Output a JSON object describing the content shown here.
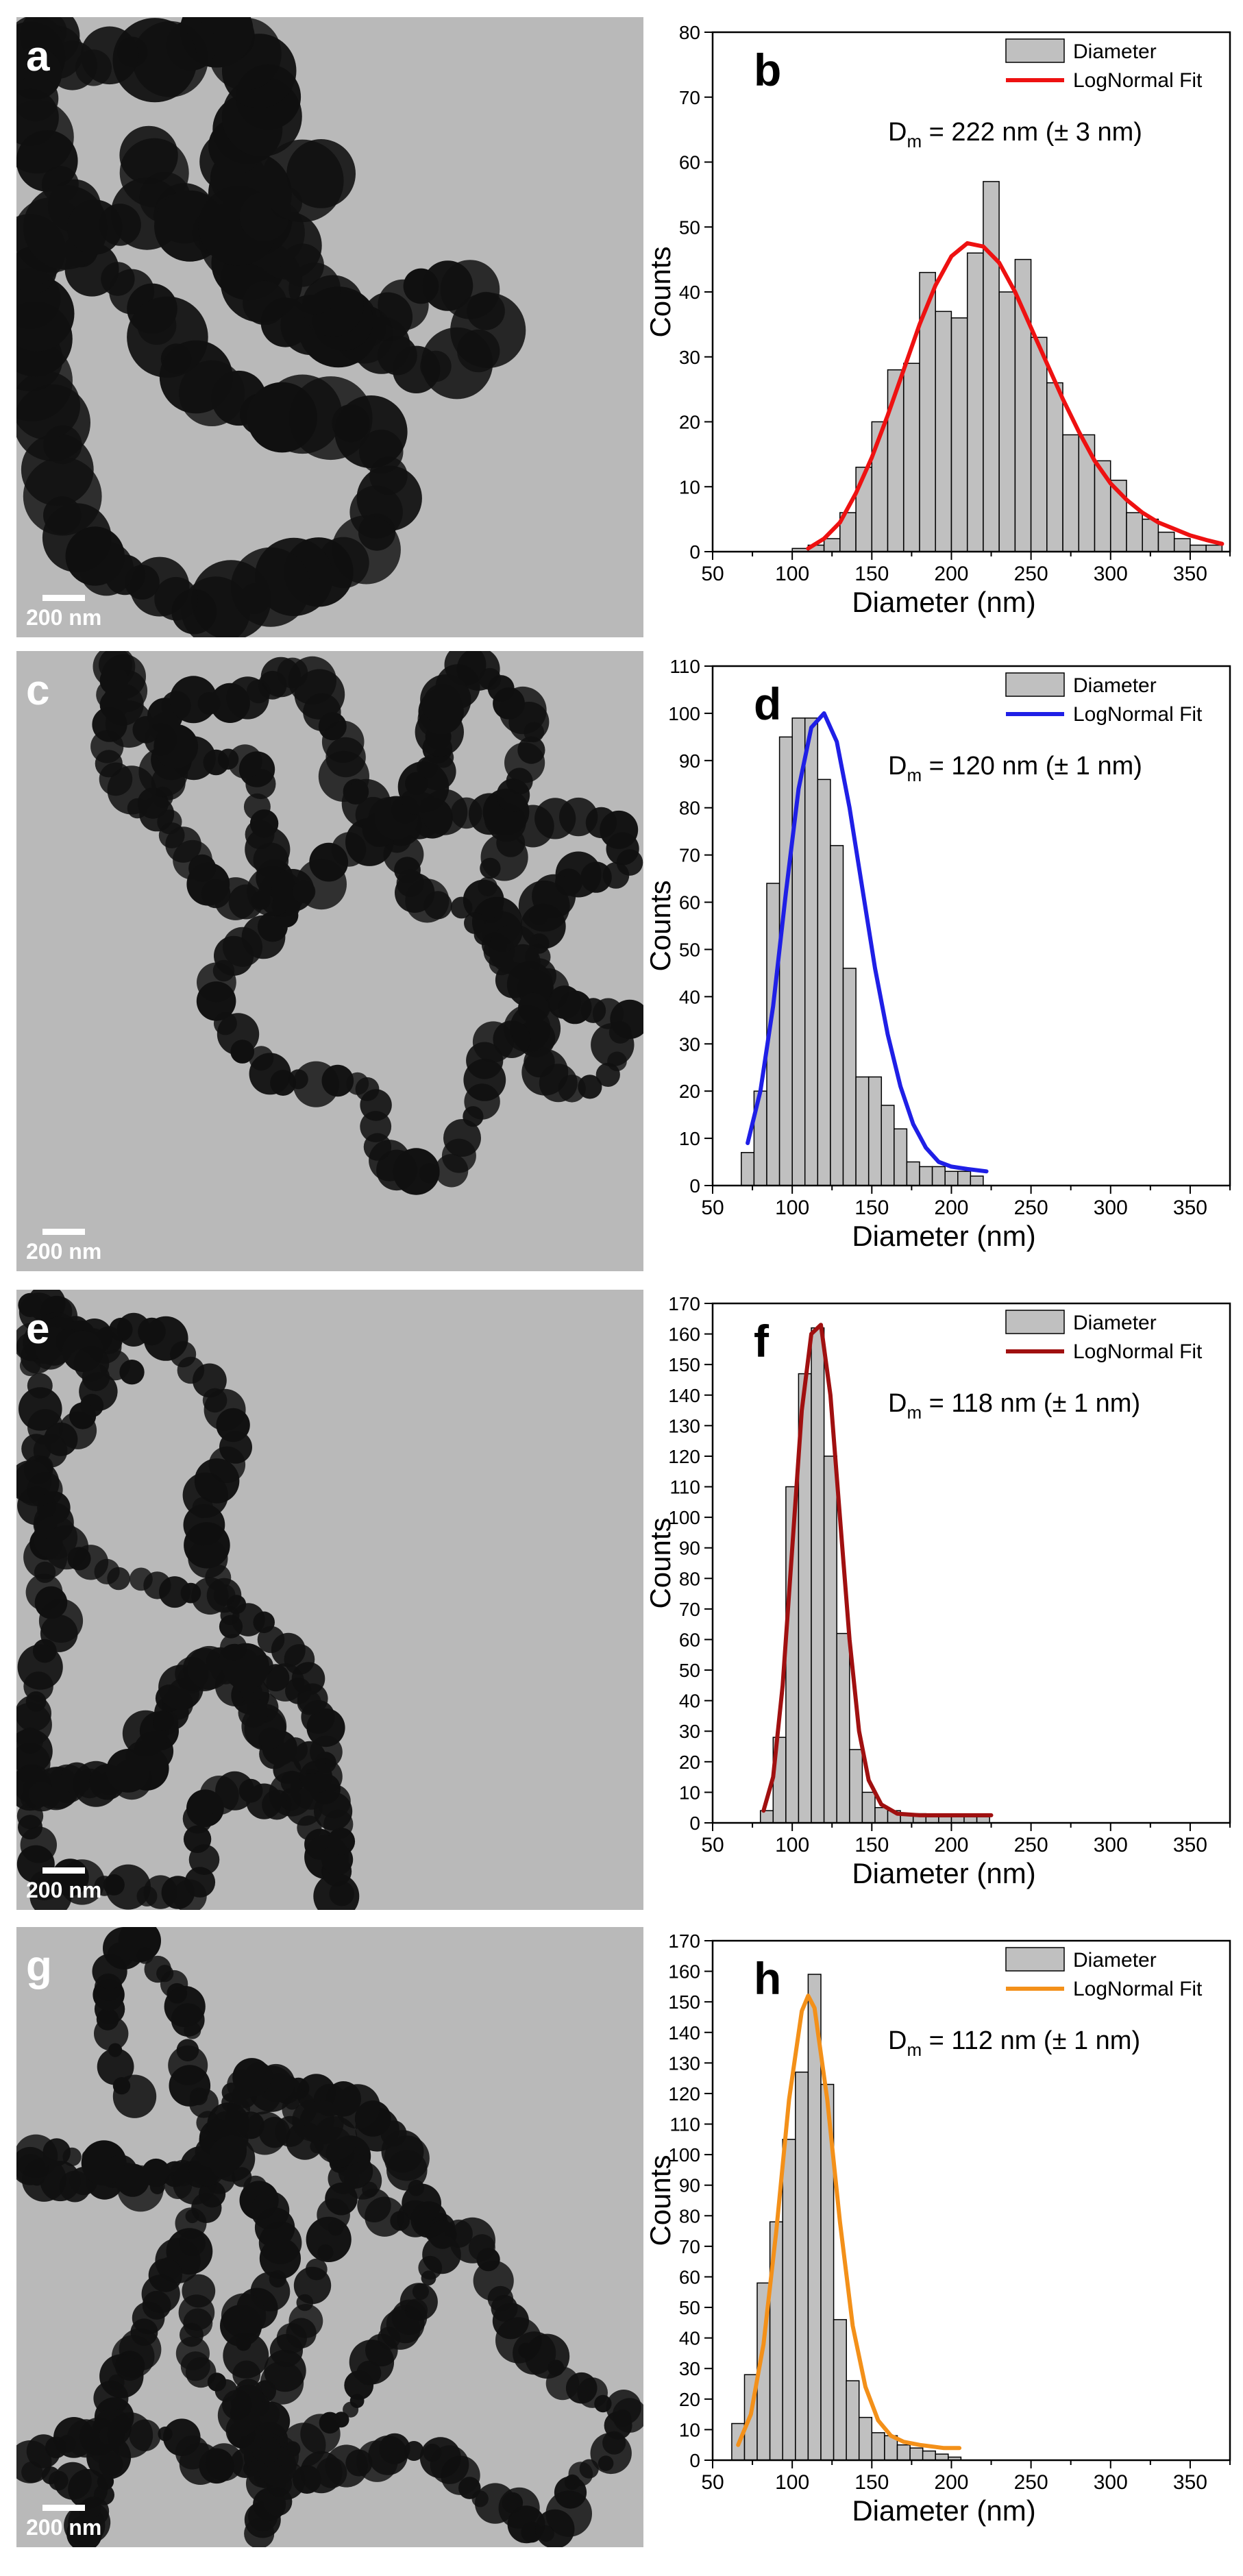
{
  "panels": [
    {
      "letter": "a",
      "scalebar_label": "200 nm",
      "accent": "#ffffff"
    },
    {
      "letter": "c",
      "scalebar_label": "200 nm",
      "accent": "#ffffff"
    },
    {
      "letter": "e",
      "scalebar_label": "200 nm",
      "accent": "#ffffff"
    },
    {
      "letter": "g",
      "scalebar_label": "200 nm",
      "accent": "#ffffff"
    }
  ],
  "chart_data": [
    {
      "type": "bar",
      "panel_letter": "b",
      "xlabel": "Diameter (nm)",
      "ylabel": "Counts",
      "xlim": [
        50,
        375
      ],
      "ylim": [
        0,
        80
      ],
      "xticks": [
        50,
        100,
        150,
        200,
        250,
        300,
        350
      ],
      "yticks": [
        0,
        10,
        20,
        30,
        40,
        50,
        60,
        70,
        80
      ],
      "bin_width": 10,
      "bins": [
        105,
        115,
        125,
        135,
        145,
        155,
        165,
        175,
        185,
        195,
        205,
        215,
        225,
        235,
        245,
        255,
        265,
        275,
        285,
        295,
        305,
        315,
        325,
        335,
        345,
        355,
        365
      ],
      "values": [
        0.5,
        1,
        2,
        6,
        13,
        20,
        28,
        29,
        43,
        37,
        36,
        46,
        57,
        40,
        45,
        33,
        26,
        18,
        18,
        14,
        11,
        6,
        5,
        3,
        2,
        1,
        1
      ],
      "series": [
        {
          "name": "Diameter",
          "color": "#c0c0c0",
          "kind": "bars"
        },
        {
          "name": "LogNormal Fit",
          "color": "#ee1111",
          "kind": "line",
          "x": [
            110,
            120,
            130,
            140,
            150,
            160,
            170,
            180,
            190,
            200,
            210,
            220,
            230,
            240,
            250,
            260,
            270,
            280,
            290,
            300,
            310,
            320,
            330,
            340,
            350,
            360,
            370
          ],
          "values": [
            0.5,
            2,
            4.5,
            9,
            14.5,
            21,
            28,
            35,
            41,
            45.5,
            47.5,
            47,
            44.5,
            40,
            34.5,
            29,
            23.5,
            18.5,
            14,
            10.5,
            8,
            6,
            4.5,
            3.5,
            2.5,
            1.8,
            1.2
          ]
        }
      ],
      "legend": {
        "position": "top-right",
        "items": [
          "Diameter",
          "LogNormal Fit"
        ]
      },
      "annotation": {
        "prefix": "D",
        "subscript": "m",
        "text": " = 222 nm (± 3 nm)"
      }
    },
    {
      "type": "bar",
      "panel_letter": "d",
      "xlabel": "Diameter (nm)",
      "ylabel": "Counts",
      "xlim": [
        50,
        375
      ],
      "ylim": [
        0,
        110
      ],
      "xticks": [
        50,
        100,
        150,
        200,
        250,
        300,
        350
      ],
      "yticks": [
        0,
        10,
        20,
        30,
        40,
        50,
        60,
        70,
        80,
        90,
        100,
        110
      ],
      "bin_width": 8,
      "bins": [
        72,
        80,
        88,
        96,
        104,
        112,
        120,
        128,
        136,
        144,
        152,
        160,
        168,
        176,
        184,
        192,
        200,
        208,
        216
      ],
      "values": [
        7,
        20,
        64,
        95,
        99,
        99,
        86,
        72,
        46,
        23,
        23,
        17,
        12,
        5,
        4,
        4,
        3,
        3,
        2
      ],
      "series": [
        {
          "name": "Diameter",
          "color": "#c0c0c0",
          "kind": "bars"
        },
        {
          "name": "LogNormal Fit",
          "color": "#1f1fe6",
          "kind": "line",
          "x": [
            72,
            80,
            88,
            96,
            104,
            112,
            120,
            128,
            136,
            144,
            152,
            160,
            168,
            176,
            184,
            192,
            200,
            210,
            222
          ],
          "values": [
            9,
            20,
            38,
            62,
            84,
            97,
            100,
            94,
            80,
            63,
            46,
            32,
            21,
            13,
            8,
            5,
            4,
            3.5,
            3
          ]
        }
      ],
      "legend": {
        "position": "top-right",
        "items": [
          "Diameter",
          "LogNormal Fit"
        ]
      },
      "annotation": {
        "prefix": "D",
        "subscript": "m",
        "text": " = 120 nm (± 1 nm)"
      }
    },
    {
      "type": "bar",
      "panel_letter": "f",
      "xlabel": "Diameter (nm)",
      "ylabel": "Counts",
      "xlim": [
        50,
        375
      ],
      "ylim": [
        0,
        170
      ],
      "xticks": [
        50,
        100,
        150,
        200,
        250,
        300,
        350
      ],
      "yticks": [
        0,
        10,
        20,
        30,
        40,
        50,
        60,
        70,
        80,
        90,
        100,
        110,
        120,
        130,
        140,
        150,
        160,
        170
      ],
      "bin_width": 8,
      "bins": [
        84,
        92,
        100,
        108,
        116,
        124,
        132,
        140,
        148,
        156,
        164,
        172,
        180,
        188,
        196,
        204,
        212,
        220
      ],
      "values": [
        4,
        28,
        110,
        147,
        162,
        120,
        62,
        24,
        10,
        5,
        4,
        3,
        3,
        2,
        2,
        2,
        2,
        2
      ],
      "series": [
        {
          "name": "Diameter",
          "color": "#c0c0c0",
          "kind": "bars"
        },
        {
          "name": "LogNormal Fit",
          "color": "#a01010",
          "kind": "line",
          "x": [
            82,
            88,
            94,
            100,
            106,
            112,
            118,
            124,
            130,
            136,
            142,
            148,
            156,
            166,
            180,
            200,
            225
          ],
          "values": [
            4,
            15,
            45,
            90,
            135,
            160,
            163,
            140,
            100,
            60,
            30,
            14,
            6,
            3,
            2.5,
            2.5,
            2.5
          ]
        }
      ],
      "legend": {
        "position": "top-right",
        "items": [
          "Diameter",
          "LogNormal Fit"
        ]
      },
      "annotation": {
        "prefix": "D",
        "subscript": "m",
        "text": " = 118 nm (± 1 nm)"
      }
    },
    {
      "type": "bar",
      "panel_letter": "h",
      "xlabel": "Diameter (nm)",
      "ylabel": "Counts",
      "xlim": [
        50,
        375
      ],
      "ylim": [
        0,
        170
      ],
      "xticks": [
        50,
        100,
        150,
        200,
        250,
        300,
        350
      ],
      "yticks": [
        0,
        10,
        20,
        30,
        40,
        50,
        60,
        70,
        80,
        90,
        100,
        110,
        120,
        130,
        140,
        150,
        160,
        170
      ],
      "bin_width": 8,
      "bins": [
        66,
        74,
        82,
        90,
        98,
        106,
        114,
        122,
        130,
        138,
        146,
        154,
        162,
        170,
        178,
        186,
        194,
        202
      ],
      "values": [
        12,
        28,
        58,
        78,
        105,
        127,
        159,
        123,
        46,
        26,
        14,
        9,
        8,
        5,
        4,
        3,
        2,
        1
      ],
      "series": [
        {
          "name": "Diameter",
          "color": "#c0c0c0",
          "kind": "bars"
        },
        {
          "name": "LogNormal Fit",
          "color": "#f39019",
          "kind": "line",
          "x": [
            66,
            74,
            82,
            90,
            98,
            106,
            110,
            114,
            122,
            130,
            138,
            146,
            154,
            162,
            170,
            180,
            195,
            205
          ],
          "values": [
            5,
            15,
            38,
            75,
            118,
            147,
            152,
            148,
            118,
            78,
            44,
            24,
            13,
            8,
            6,
            5,
            4,
            4
          ]
        }
      ],
      "legend": {
        "position": "top-right",
        "items": [
          "Diameter",
          "LogNormal Fit"
        ]
      },
      "annotation": {
        "prefix": "D",
        "subscript": "m",
        "text": " = 112 nm (± 1 nm)"
      }
    }
  ]
}
